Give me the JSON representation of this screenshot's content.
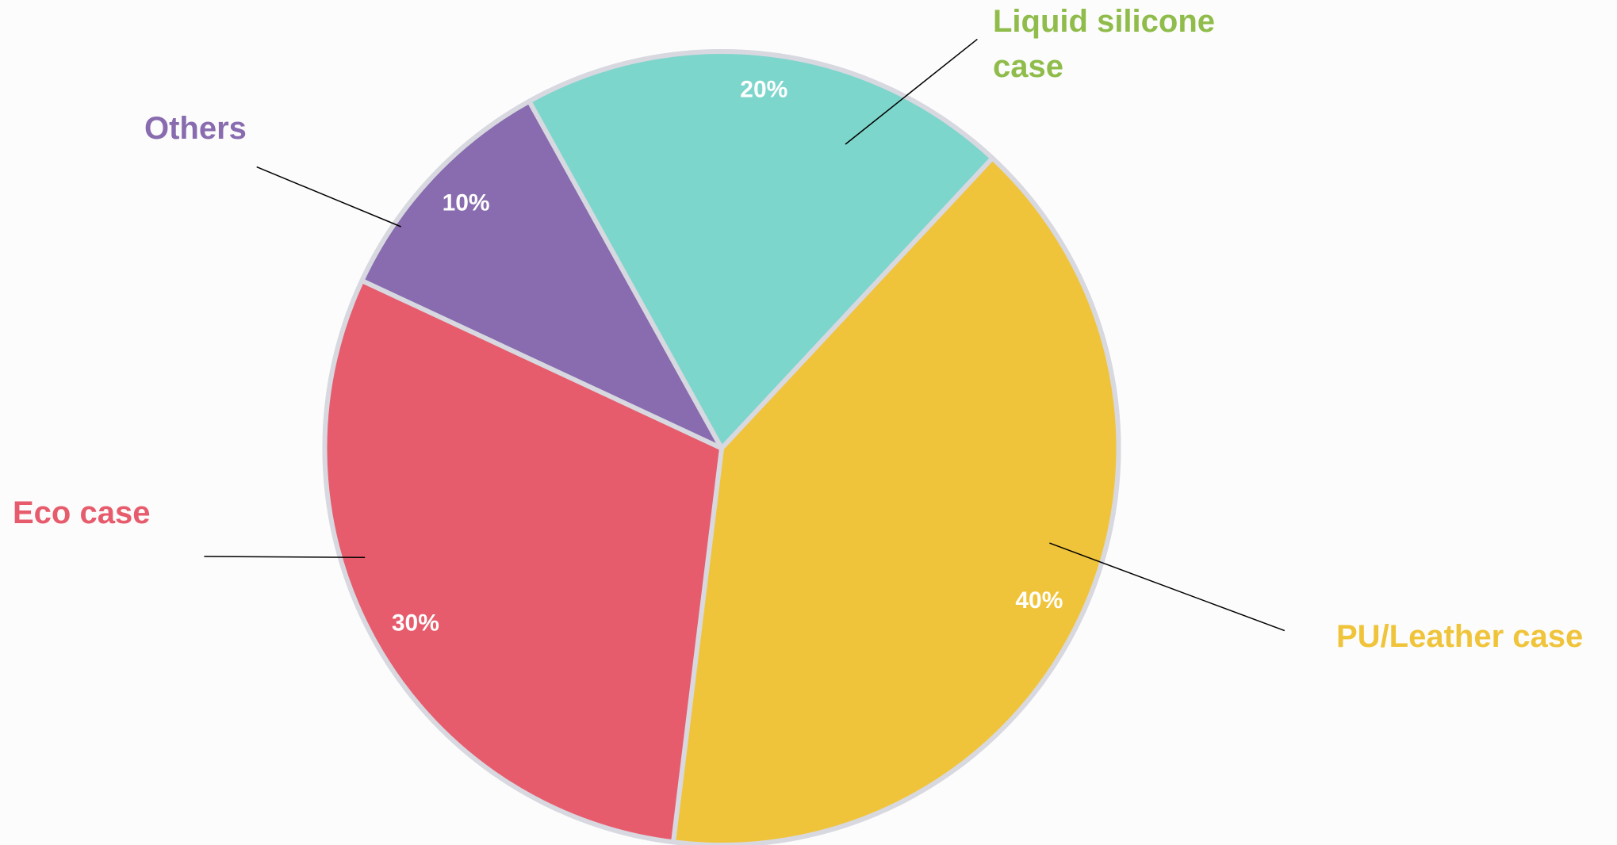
{
  "chart_data": {
    "type": "pie",
    "categories": [
      "PU/Leather case",
      "Eco case",
      "Others",
      "Liquid silicone case"
    ],
    "values": [
      40,
      30,
      10,
      20
    ],
    "value_labels": [
      "40%",
      "30%",
      "10%",
      "20%"
    ],
    "colors": [
      "#f0c43a",
      "#e75c6c",
      "#886caf",
      "#7dd6cc"
    ],
    "label_colors": [
      "#f0c43a",
      "#e75c6c",
      "#886caf",
      "#8fbc4a"
    ]
  }
}
